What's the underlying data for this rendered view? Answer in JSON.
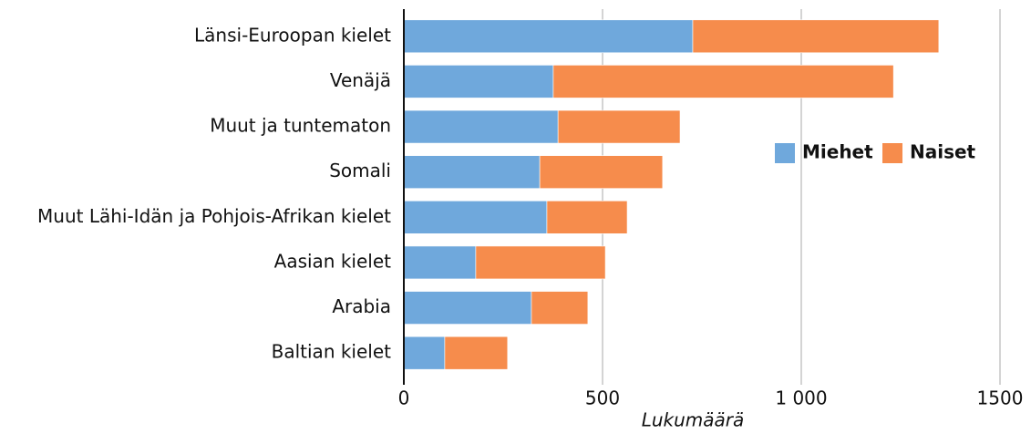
{
  "chart_data": {
    "type": "stacked_barh",
    "categories": [
      "Länsi-Euroopan kielet",
      "Venäjä",
      "Muut ja tuntematon",
      "Somali",
      "Muut Lähi-Idän ja Pohjois-Afrikan kielet",
      "Aasian kielet",
      "Arabia",
      "Baltian kielet"
    ],
    "series": [
      {
        "name": "Miehet",
        "color": "#6fa8dc",
        "values": [
          727,
          376,
          388,
          342,
          360,
          181,
          321,
          103
        ]
      },
      {
        "name": "Naiset",
        "color": "#f68c4c",
        "values": [
          619,
          856,
          307,
          309,
          202,
          326,
          142,
          158
        ]
      }
    ],
    "x_label": "Lukumäärä",
    "xlim": [
      0,
      1500
    ],
    "xticks": [
      0,
      500,
      {
        "value": 1000,
        "label": "1 000"
      },
      1500
    ],
    "grid": true,
    "legend": "right"
  }
}
